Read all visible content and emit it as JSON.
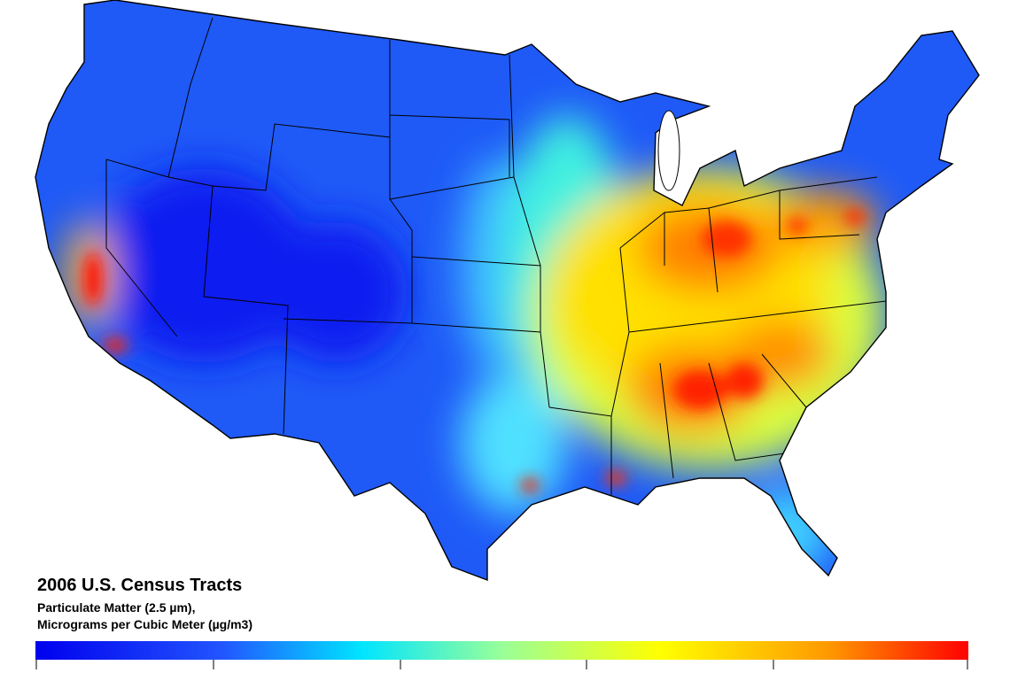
{
  "legend": {
    "title": "2006 U.S. Census Tracts",
    "subtitle": [
      "Particulate Matter (2.5 µm),",
      "Micrograms per Cubic Meter (µg/m3)"
    ]
  }
}
